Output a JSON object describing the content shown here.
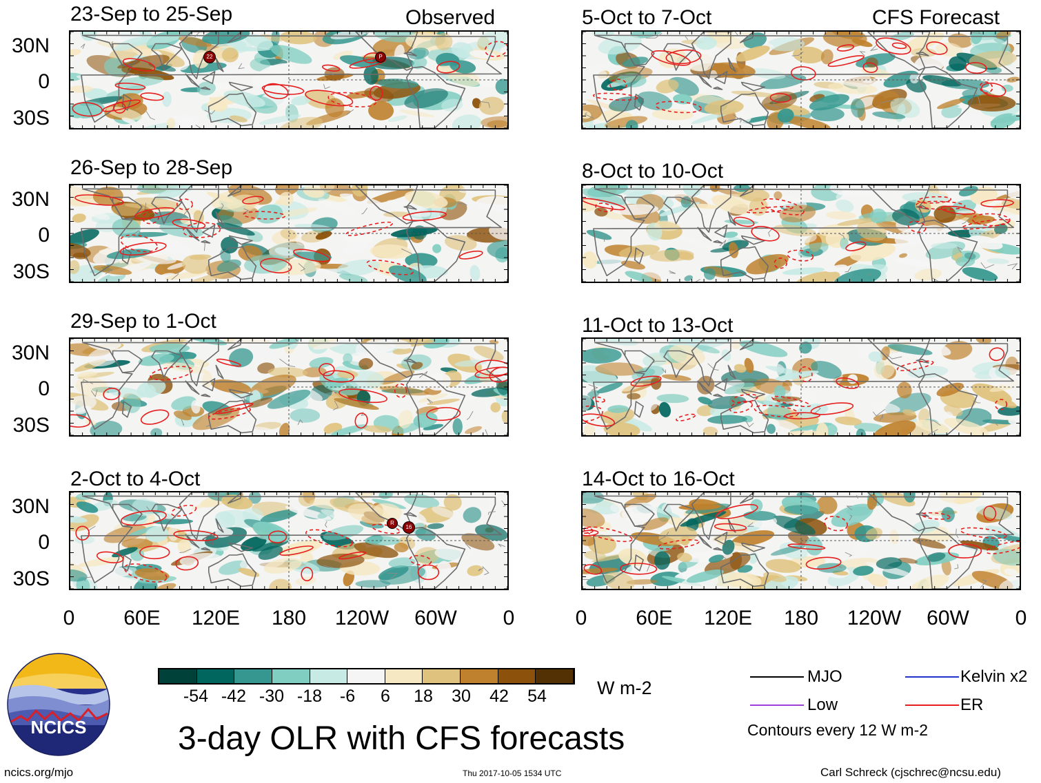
{
  "panels": [
    {
      "title": "23-Sep to 25-Sep",
      "tag": "Observed"
    },
    {
      "title": "26-Sep to 28-Sep",
      "tag": ""
    },
    {
      "title": "29-Sep to 1-Oct",
      "tag": ""
    },
    {
      "title": "2-Oct to 4-Oct",
      "tag": ""
    },
    {
      "title": "5-Oct to 7-Oct",
      "tag": "CFS Forecast"
    },
    {
      "title": "8-Oct to 10-Oct",
      "tag": ""
    },
    {
      "title": "11-Oct to 13-Oct",
      "tag": ""
    },
    {
      "title": "14-Oct to 16-Oct",
      "tag": ""
    }
  ],
  "lat_labels": [
    "30N",
    "0",
    "30S"
  ],
  "lon_labels": [
    "0",
    "60E",
    "120E",
    "180",
    "120W",
    "60W",
    "0"
  ],
  "storm_markers": [
    {
      "panel": 0,
      "label": "22"
    },
    {
      "panel": 0,
      "label": "P"
    },
    {
      "panel": 3,
      "label": "R"
    },
    {
      "panel": 3,
      "label": "16"
    }
  ],
  "colorbar": {
    "colors": [
      "#00413a",
      "#01665e",
      "#35978f",
      "#80cdc1",
      "#c7eae5",
      "#f5f5f5",
      "#f6e8c3",
      "#dfc27d",
      "#bf812d",
      "#8c510a",
      "#543005"
    ],
    "ticks": [
      "-54",
      "-42",
      "-30",
      "-18",
      "-6",
      "6",
      "18",
      "30",
      "42",
      "54"
    ],
    "units": "W m-2"
  },
  "legend": {
    "items": [
      {
        "label": "MJO",
        "color": "#000000"
      },
      {
        "label": "Kelvin x2",
        "color": "#1f33cc"
      },
      {
        "label": "Low",
        "color": "#9b3fd9"
      },
      {
        "label": "ER",
        "color": "#e61e1e"
      }
    ],
    "note": "Contours every 12 W m-2"
  },
  "title": "3-day OLR with CFS forecasts",
  "logo_text": "NCICS",
  "footer": {
    "url": "ncics.org/mjo",
    "timestamp": "Thu 2017-10-05 1534 UTC",
    "credit": "Carl Schreck (cjschrec@ncsu.edu)"
  }
}
